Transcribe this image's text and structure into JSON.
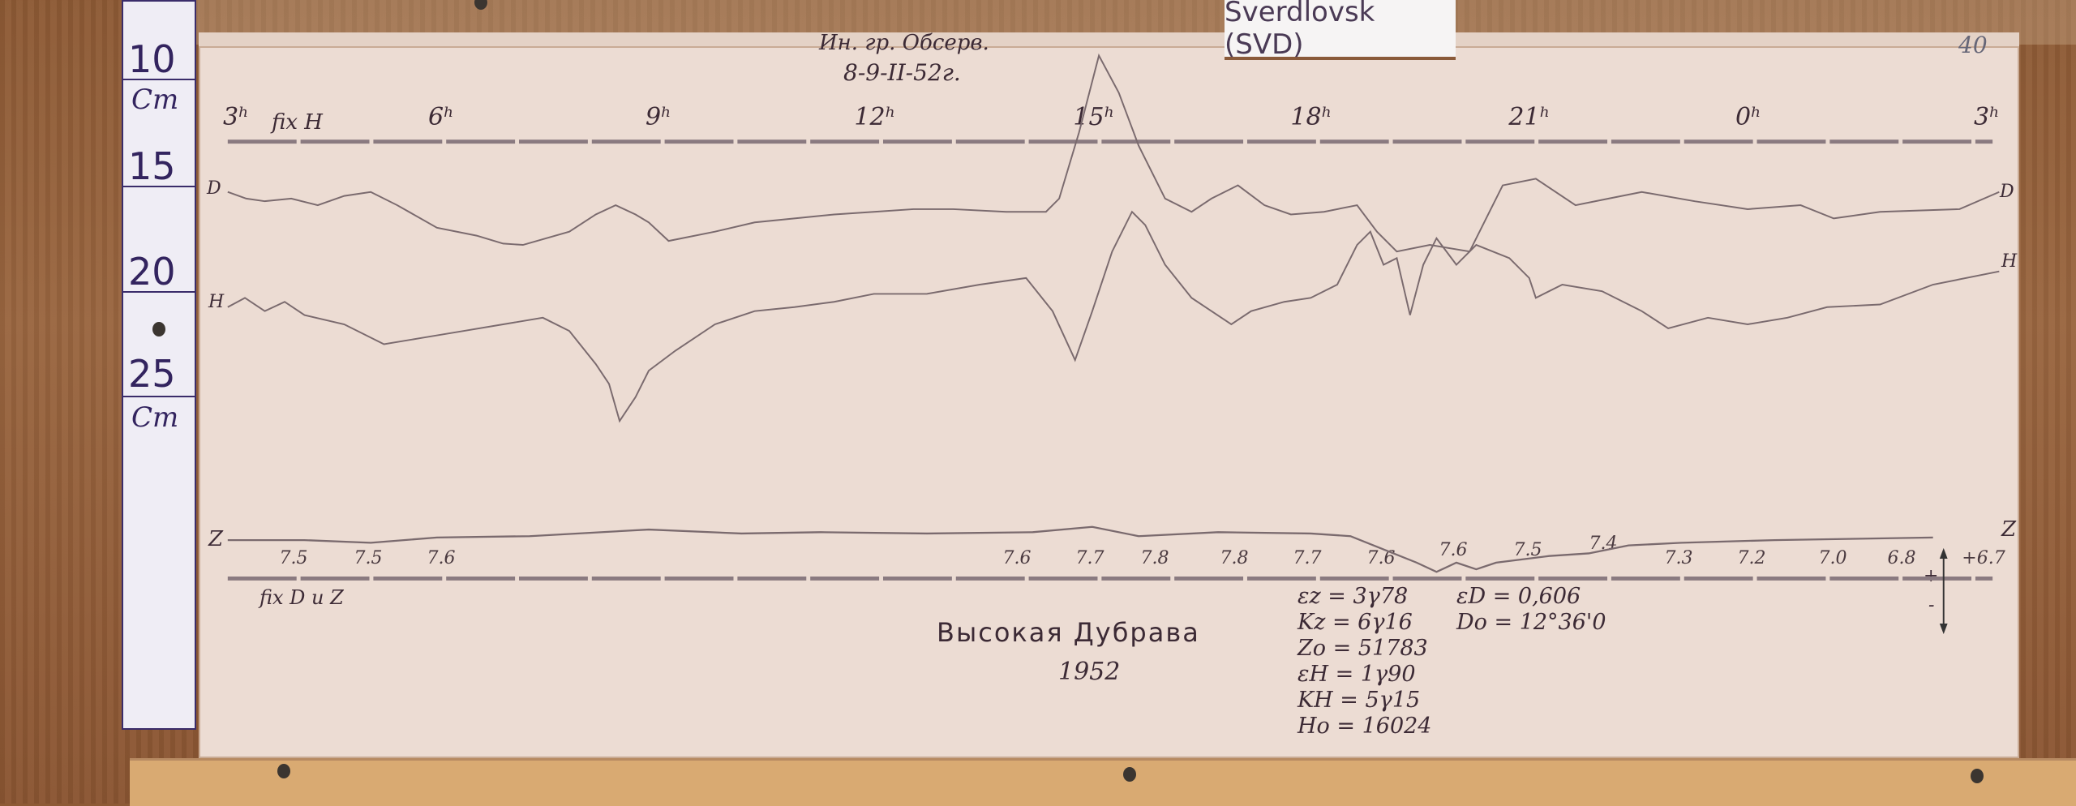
{
  "station_label": "Sverdlovsk (SVD)",
  "ruler": {
    "marks": [
      "10",
      "15",
      "20",
      "25"
    ],
    "unit": "Cm"
  },
  "header": {
    "observer": "Ин. гр. Обсерв.",
    "date": "8-9-II-52г.",
    "sheet_number": "40"
  },
  "time_axis": {
    "hours": [
      "3ʰ",
      "6ʰ",
      "9ʰ",
      "12ʰ",
      "15ʰ",
      "18ʰ",
      "21ʰ",
      "0ʰ",
      "3ʰ"
    ],
    "fix_label": "fix H"
  },
  "traces": {
    "left_labels": [
      "D",
      "H",
      "Z"
    ],
    "right_labels": [
      "D",
      "H",
      "Z"
    ],
    "color": "#7a6a6e"
  },
  "z_temperatures": [
    "7.5",
    "7.5",
    "7.6",
    "7.6",
    "7.7",
    "7.8",
    "7.8",
    "7.7",
    "7.6",
    "7.6",
    "7.5",
    "7.4",
    "7.3",
    "7.2",
    "7.0",
    "6.8",
    "+6.7"
  ],
  "bottom_fix_label": "fix D и Z",
  "title": "Высокая Дубрава",
  "year": "1952",
  "constants": [
    "εz = 3γ78",
    "Kz = 6γ16",
    "Zo = 51783",
    "εH = 1γ90",
    "KH = 5γ15",
    "Ho = 16024"
  ],
  "d_constants": [
    "εD = 0,606",
    "Do = 12°36'0"
  ],
  "scale_arrow": {
    "plus": "+",
    "minus": "-"
  }
}
